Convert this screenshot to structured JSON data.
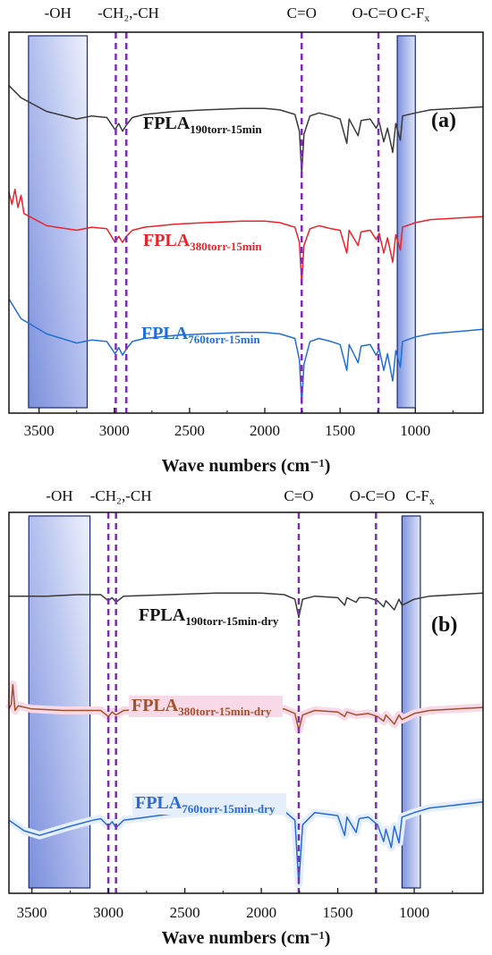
{
  "chart_data": [
    {
      "type": "line",
      "panel_label": "(a)",
      "xlabel": "Wave numbers (cm⁻¹)",
      "xlim": [
        3700,
        550
      ],
      "x_ticks": [
        3500,
        3000,
        2500,
        2000,
        1500,
        1000
      ],
      "grid": false,
      "bands": [
        {
          "label": "-OH",
          "from": 3570,
          "to": 3180
        },
        {
          "label": "C-F",
          "label_sub": "x",
          "from": 1120,
          "to": 1000
        }
      ],
      "lines": [
        {
          "label": "-CH₂,-CH",
          "x": 2990
        },
        {
          "label": "",
          "x": 2920
        },
        {
          "label": "C=O",
          "x": 1755
        },
        {
          "label": "O-C=O",
          "x": 1245
        }
      ],
      "series": [
        {
          "name": "FPLA",
          "name_sub": "190torr-15min",
          "color": "#3a3a3a",
          "baseline": 0.78,
          "x": [
            3700,
            3620,
            3450,
            3250,
            3150,
            3050,
            2995,
            2970,
            2945,
            2920,
            2880,
            2800,
            2600,
            2400,
            2150,
            2000,
            1900,
            1800,
            1770,
            1755,
            1740,
            1700,
            1640,
            1560,
            1500,
            1455,
            1440,
            1380,
            1360,
            1300,
            1260,
            1240,
            1210,
            1185,
            1150,
            1130,
            1100,
            1085,
            1000,
            900,
            550
          ],
          "y": [
            0.8,
            0.72,
            0.63,
            0.58,
            0.6,
            0.59,
            0.51,
            0.55,
            0.5,
            0.54,
            0.59,
            0.61,
            0.63,
            0.64,
            0.65,
            0.65,
            0.64,
            0.61,
            0.5,
            0.22,
            0.48,
            0.6,
            0.62,
            0.6,
            0.58,
            0.42,
            0.58,
            0.47,
            0.57,
            0.58,
            0.52,
            0.56,
            0.43,
            0.52,
            0.36,
            0.55,
            0.44,
            0.6,
            0.62,
            0.64,
            0.66
          ]
        },
        {
          "name": "FPLA",
          "name_sub": "380torr-15min",
          "color": "#e8242a",
          "baseline": 0.5,
          "x": [
            3700,
            3680,
            3660,
            3640,
            3620,
            3600,
            3450,
            3250,
            3150,
            3050,
            2995,
            2970,
            2945,
            2920,
            2880,
            2800,
            2600,
            2400,
            2150,
            2000,
            1900,
            1800,
            1770,
            1755,
            1740,
            1700,
            1640,
            1560,
            1500,
            1455,
            1440,
            1380,
            1360,
            1300,
            1260,
            1240,
            1210,
            1185,
            1150,
            1130,
            1100,
            1085,
            1000,
            900,
            550
          ],
          "y": [
            0.8,
            0.72,
            0.82,
            0.7,
            0.78,
            0.66,
            0.58,
            0.55,
            0.57,
            0.56,
            0.47,
            0.51,
            0.47,
            0.51,
            0.55,
            0.57,
            0.59,
            0.6,
            0.61,
            0.61,
            0.6,
            0.57,
            0.47,
            0.2,
            0.45,
            0.56,
            0.58,
            0.56,
            0.55,
            0.4,
            0.55,
            0.45,
            0.54,
            0.55,
            0.49,
            0.53,
            0.4,
            0.5,
            0.34,
            0.52,
            0.42,
            0.57,
            0.6,
            0.62,
            0.64
          ]
        },
        {
          "name": "FPLA",
          "name_sub": "760torr-15min",
          "color": "#1f6fd6",
          "baseline": 0.2,
          "x": [
            3700,
            3620,
            3450,
            3250,
            3150,
            3050,
            2995,
            2970,
            2945,
            2920,
            2880,
            2800,
            2600,
            2400,
            2150,
            2000,
            1900,
            1800,
            1770,
            1755,
            1740,
            1700,
            1640,
            1560,
            1500,
            1455,
            1440,
            1380,
            1360,
            1300,
            1260,
            1240,
            1210,
            1185,
            1150,
            1130,
            1100,
            1085,
            1000,
            900,
            550
          ],
          "y": [
            0.85,
            0.72,
            0.62,
            0.56,
            0.58,
            0.57,
            0.49,
            0.53,
            0.48,
            0.52,
            0.57,
            0.59,
            0.61,
            0.62,
            0.63,
            0.63,
            0.62,
            0.59,
            0.45,
            0.16,
            0.42,
            0.57,
            0.59,
            0.57,
            0.55,
            0.38,
            0.55,
            0.43,
            0.54,
            0.55,
            0.48,
            0.52,
            0.38,
            0.49,
            0.31,
            0.51,
            0.4,
            0.57,
            0.6,
            0.62,
            0.65
          ]
        }
      ]
    },
    {
      "type": "line",
      "panel_label": "(b)",
      "xlabel": "Wave numbers (cm⁻¹)",
      "xlim": [
        3650,
        550
      ],
      "x_ticks": [
        3500,
        3000,
        2500,
        2000,
        1500,
        1000
      ],
      "grid": false,
      "bands": [
        {
          "label": "-OH",
          "from": 3520,
          "to": 3120
        },
        {
          "label": "C-F",
          "label_sub": "x",
          "from": 1080,
          "to": 960
        }
      ],
      "lines": [
        {
          "label": "-CH₂,-CH",
          "x": 3000
        },
        {
          "label": "",
          "x": 2950
        },
        {
          "label": "C=O",
          "x": 1755
        },
        {
          "label": "O-C=O",
          "x": 1250
        }
      ],
      "series": [
        {
          "name": "FPLA",
          "name_sub": "190torr-15min-dry",
          "color": "#3a3a3a",
          "baseline": 0.78,
          "x": [
            3650,
            3400,
            3200,
            3050,
            3000,
            2975,
            2950,
            2900,
            2600,
            2300,
            2150,
            2000,
            1850,
            1780,
            1755,
            1730,
            1650,
            1500,
            1455,
            1440,
            1380,
            1360,
            1300,
            1240,
            1200,
            1185,
            1130,
            1100,
            1080,
            1000,
            900,
            550
          ],
          "y": [
            0.6,
            0.6,
            0.61,
            0.61,
            0.57,
            0.59,
            0.56,
            0.6,
            0.61,
            0.62,
            0.62,
            0.62,
            0.61,
            0.58,
            0.46,
            0.58,
            0.6,
            0.59,
            0.54,
            0.59,
            0.56,
            0.59,
            0.59,
            0.57,
            0.53,
            0.57,
            0.51,
            0.58,
            0.54,
            0.58,
            0.6,
            0.62
          ]
        },
        {
          "name": "FPLA",
          "name_sub": "380torr-15min-dry",
          "color": "#a0522d",
          "baseline": 0.5,
          "x": [
            3650,
            3635,
            3625,
            3610,
            3590,
            3500,
            3300,
            3050,
            3000,
            2975,
            2950,
            2900,
            2600,
            2300,
            2000,
            1850,
            1780,
            1755,
            1730,
            1650,
            1500,
            1455,
            1440,
            1380,
            1300,
            1240,
            1200,
            1185,
            1130,
            1100,
            1080,
            1000,
            900,
            550
          ],
          "y": [
            0.56,
            0.59,
            0.72,
            0.55,
            0.58,
            0.56,
            0.55,
            0.55,
            0.51,
            0.54,
            0.52,
            0.55,
            0.56,
            0.56,
            0.56,
            0.56,
            0.53,
            0.42,
            0.52,
            0.55,
            0.54,
            0.51,
            0.54,
            0.52,
            0.53,
            0.51,
            0.48,
            0.52,
            0.46,
            0.52,
            0.49,
            0.53,
            0.55,
            0.57
          ]
        },
        {
          "name": "FPLA",
          "name_sub": "760torr-15min-dry",
          "color": "#2a6ad6",
          "baseline": 0.2,
          "x": [
            3650,
            3550,
            3450,
            3250,
            3100,
            3050,
            3000,
            2975,
            2950,
            2900,
            2600,
            2300,
            2150,
            2000,
            1850,
            1780,
            1755,
            1730,
            1650,
            1500,
            1455,
            1440,
            1380,
            1360,
            1300,
            1240,
            1200,
            1185,
            1150,
            1130,
            1100,
            1080,
            1000,
            900,
            550
          ],
          "y": [
            0.58,
            0.51,
            0.48,
            0.54,
            0.58,
            0.59,
            0.54,
            0.57,
            0.53,
            0.58,
            0.62,
            0.64,
            0.65,
            0.65,
            0.64,
            0.58,
            0.16,
            0.55,
            0.63,
            0.61,
            0.48,
            0.6,
            0.5,
            0.59,
            0.6,
            0.55,
            0.44,
            0.52,
            0.4,
            0.54,
            0.43,
            0.6,
            0.63,
            0.66,
            0.7
          ]
        }
      ]
    }
  ]
}
